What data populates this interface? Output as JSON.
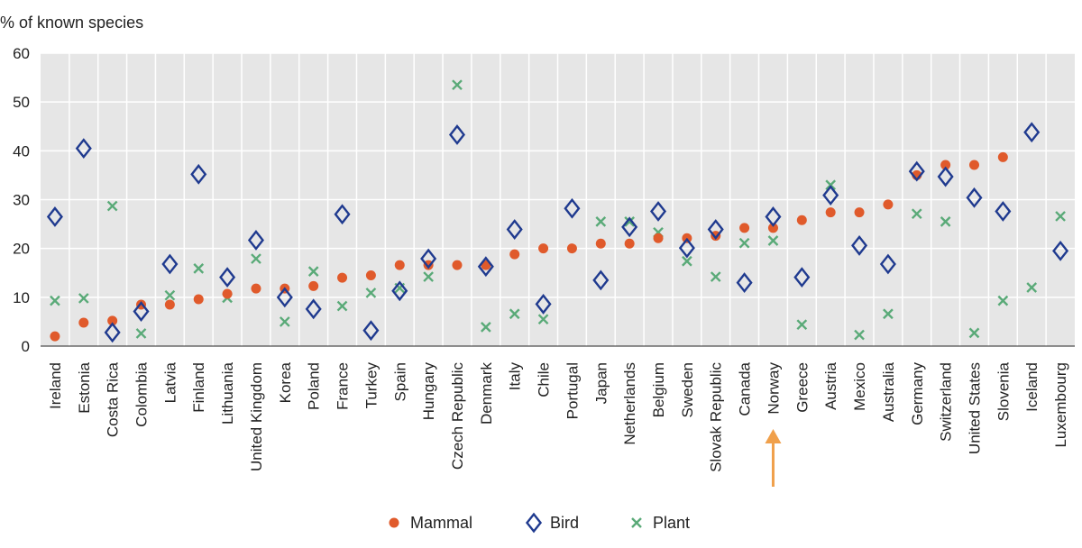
{
  "chart_data": {
    "type": "scatter",
    "ylabel": "% of known species",
    "ylim": [
      0,
      60
    ],
    "yticks": [
      0,
      10,
      20,
      30,
      40,
      50,
      60
    ],
    "grid": true,
    "legend_position": "bottom-center",
    "highlight_category": "Norway",
    "categories": [
      "Ireland",
      "Estonia",
      "Costa Rica",
      "Colombia",
      "Latvia",
      "Finland",
      "Lithuania",
      "United Kingdom",
      "Korea",
      "Poland",
      "France",
      "Turkey",
      "Spain",
      "Hungary",
      "Czech Republic",
      "Denmark",
      "Italy",
      "Chile",
      "Portugal",
      "Japan",
      "Netherlands",
      "Belgium",
      "Sweden",
      "Slovak Republic",
      "Canada",
      "Norway",
      "Greece",
      "Austria",
      "Mexico",
      "Australia",
      "Germany",
      "Switzerland",
      "United States",
      "Slovenia",
      "Iceland",
      "Luxembourg"
    ],
    "series": [
      {
        "name": "Mammal",
        "marker": "circle",
        "color": "#e05a2b",
        "values": [
          2.0,
          4.8,
          5.2,
          8.5,
          8.5,
          9.6,
          10.7,
          11.8,
          11.8,
          12.3,
          14.0,
          14.5,
          16.6,
          16.6,
          16.6,
          16.6,
          18.8,
          20.0,
          20.0,
          21.0,
          21.0,
          22.1,
          22.1,
          22.6,
          24.2,
          24.2,
          25.8,
          27.4,
          27.4,
          29.0,
          35.0,
          37.1,
          37.1,
          38.7,
          null,
          null
        ]
      },
      {
        "name": "Bird",
        "marker": "diamond",
        "color": "#1f3a8f",
        "values": [
          26.5,
          40.5,
          2.8,
          7.1,
          16.8,
          35.2,
          14.1,
          21.7,
          10.0,
          7.6,
          27.0,
          3.2,
          11.3,
          17.9,
          43.3,
          16.3,
          23.9,
          8.6,
          28.2,
          13.5,
          24.4,
          27.6,
          20.1,
          23.9,
          13.0,
          26.5,
          14.1,
          30.9,
          20.6,
          16.8,
          35.8,
          34.7,
          30.4,
          27.6,
          43.8,
          19.5
        ]
      },
      {
        "name": "Plant",
        "marker": "cross",
        "color": "#5aaa78",
        "values": [
          9.3,
          9.8,
          28.7,
          2.6,
          10.4,
          15.9,
          9.9,
          17.9,
          5.0,
          15.3,
          8.2,
          10.9,
          11.9,
          14.2,
          53.5,
          3.9,
          6.6,
          5.5,
          null,
          25.5,
          25.5,
          23.3,
          17.4,
          14.2,
          21.1,
          21.6,
          4.4,
          33.0,
          2.3,
          6.6,
          27.1,
          25.5,
          2.7,
          9.3,
          12.0,
          26.6
        ]
      }
    ]
  }
}
